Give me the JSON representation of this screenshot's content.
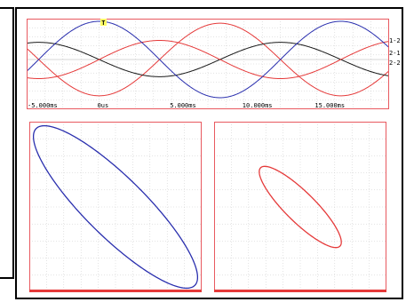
{
  "trigger_marker": "T",
  "time_ticks": [
    "-5.000ms",
    "0us",
    "5.000ms",
    "10.000ms",
    "15.000ms"
  ],
  "channel_labels": [
    "1-2",
    "2-1",
    "2-2"
  ],
  "colors": {
    "frame": "#e8595f",
    "grid": "#c9c9c9",
    "ch_1_2": "#e53a3a",
    "ch_2_1": "#1a1a1a",
    "ch_2_2": "#e53a3a",
    "ch_blue": "#2a2fae",
    "trigger_bg": "#ffff66"
  },
  "chart_data": [
    {
      "type": "line",
      "title": "",
      "xlabel": "",
      "ylabel": "",
      "xlim_ms": [
        -5,
        20
      ],
      "ylim": [
        -1,
        1
      ],
      "x_tick_labels": [
        "-5.000ms",
        "0us",
        "5.000ms",
        "10.000ms",
        "15.000ms"
      ],
      "period_ms": 16.67,
      "series": [
        {
          "name": "1-2",
          "color": "#e53a3a",
          "amplitude": 0.95,
          "phase_deg": -90
        },
        {
          "name": "2-1",
          "color": "#1a1a1a",
          "amplitude": 0.45,
          "phase_deg": 180
        },
        {
          "name": "2-2",
          "color": "#e53a3a",
          "amplitude": 0.5,
          "phase_deg": 0
        },
        {
          "color": "#2a2fae",
          "amplitude": 1.0,
          "phase_deg": 90
        }
      ],
      "grid": true
    },
    {
      "type": "scatter",
      "title": "",
      "shape": "ellipse",
      "color": "#2a2fae",
      "x_amplitude": 1.0,
      "y_amplitude": 1.0,
      "phase_deg": 150,
      "xlim": [
        -1.05,
        1.05
      ],
      "ylim": [
        -1.05,
        1.05
      ],
      "grid": true
    },
    {
      "type": "scatter",
      "title": "",
      "shape": "ellipse",
      "color": "#e53a3a",
      "x_amplitude": 0.5,
      "y_amplitude": 0.5,
      "phase_deg": 150,
      "xlim": [
        -1.05,
        1.05
      ],
      "ylim": [
        -1.05,
        1.05
      ],
      "grid": true
    }
  ]
}
